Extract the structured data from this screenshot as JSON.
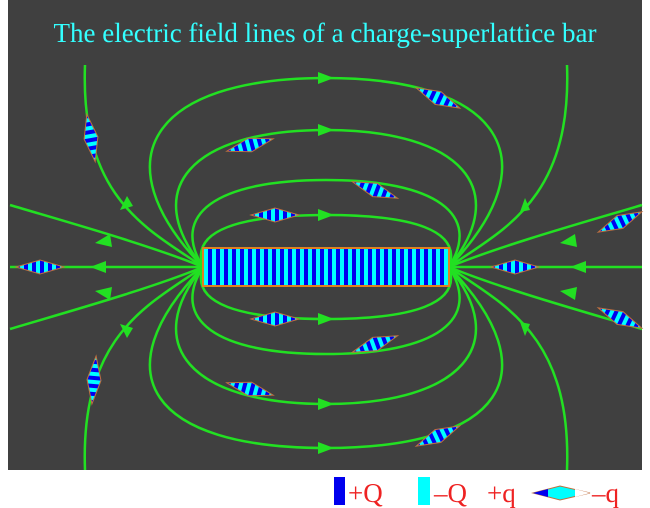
{
  "title": "The electric field lines of a charge-superlattice bar",
  "legend": {
    "positive_bar": "+Q",
    "negative_bar": "–Q",
    "positive_dipole": "+q",
    "negative_dipole": "–q"
  }
}
